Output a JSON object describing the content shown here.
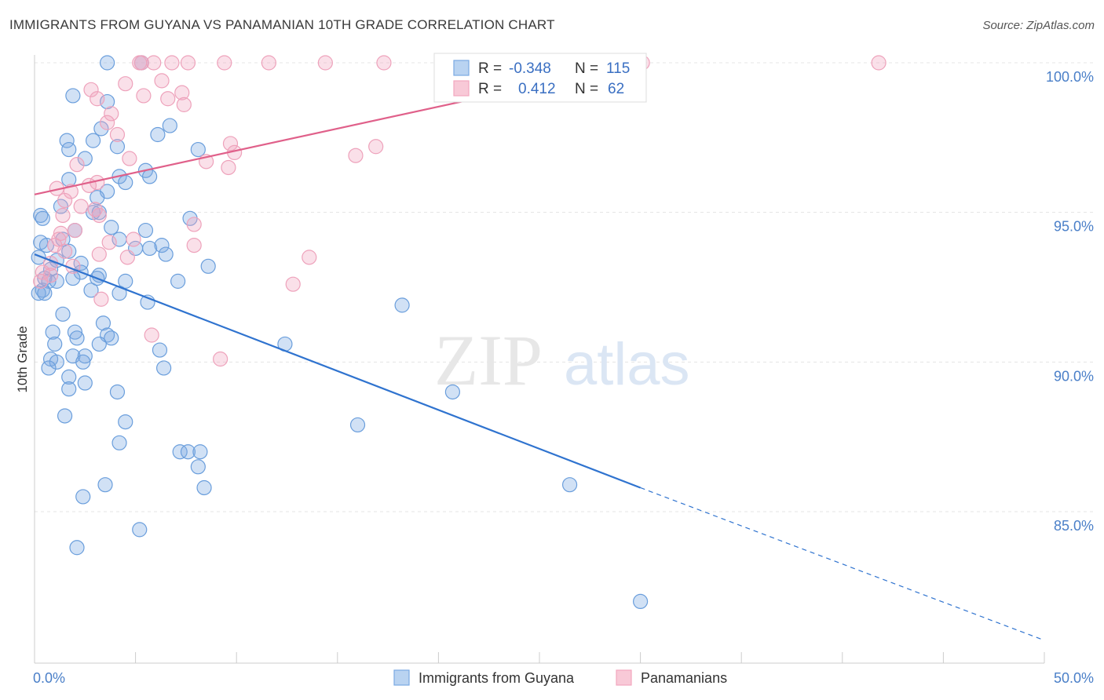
{
  "title": "IMMIGRANTS FROM GUYANA VS PANAMANIAN 10TH GRADE CORRELATION CHART",
  "source": "Source: ZipAtlas.com",
  "watermark": {
    "zip": "ZIP",
    "atlas": "atlas"
  },
  "chart_data": {
    "type": "scatter",
    "title": "IMMIGRANTS FROM GUYANA VS PANAMANIAN 10TH GRADE CORRELATION CHART",
    "xlabel": "",
    "ylabel": "10th Grade",
    "xlim": [
      0,
      50
    ],
    "ylim": [
      80.5,
      100.8
    ],
    "x_tick_labels": [
      "0.0%",
      "50.0%"
    ],
    "y_ticks": [
      85,
      90,
      95,
      100
    ],
    "y_tick_labels": [
      "85.0%",
      "90.0%",
      "95.0%",
      "100.0%"
    ],
    "grid": true,
    "legend_placement": "top-center",
    "colors": {
      "guyana": "#7aa9e3",
      "guyana_line": "#2f73cf",
      "panama": "#f2a7bf",
      "panama_line": "#e0608a",
      "tick": "#4a7fc8"
    },
    "stats": [
      {
        "r_label": "R =",
        "r": "-0.348",
        "n_label": "N =",
        "n": "115"
      },
      {
        "r_label": "R =",
        "r": "0.412",
        "n_label": "N =",
        "n": "62"
      }
    ],
    "series": [
      {
        "name": "Immigrants from Guyana",
        "trend": {
          "x": [
            0,
            30
          ],
          "y": [
            93.6,
            85.8
          ],
          "dashed_to": [
            50,
            80.7
          ]
        },
        "points": [
          [
            3.6,
            100
          ],
          [
            5.3,
            100
          ],
          [
            1.9,
            98.9
          ],
          [
            3.6,
            98.7
          ],
          [
            6.7,
            97.9
          ],
          [
            3.3,
            97.8
          ],
          [
            1.6,
            97.4
          ],
          [
            2.9,
            97.4
          ],
          [
            4.1,
            97.2
          ],
          [
            8.1,
            97.1
          ],
          [
            1.7,
            97.1
          ],
          [
            2.5,
            96.8
          ],
          [
            6.1,
            97.6
          ],
          [
            5.5,
            96.4
          ],
          [
            4.2,
            96.2
          ],
          [
            5.7,
            96.2
          ],
          [
            1.7,
            96.1
          ],
          [
            4.5,
            96.0
          ],
          [
            3.6,
            95.7
          ],
          [
            3.1,
            95.5
          ],
          [
            1.3,
            95.2
          ],
          [
            0.3,
            94.9
          ],
          [
            0.4,
            94.8
          ],
          [
            2.9,
            95.0
          ],
          [
            3.2,
            95.0
          ],
          [
            7.7,
            94.8
          ],
          [
            3.8,
            94.5
          ],
          [
            5.5,
            94.4
          ],
          [
            2.0,
            94.4
          ],
          [
            1.4,
            94.1
          ],
          [
            0.3,
            94.0
          ],
          [
            0.6,
            93.9
          ],
          [
            4.2,
            94.1
          ],
          [
            5.7,
            93.8
          ],
          [
            6.3,
            93.9
          ],
          [
            5.0,
            93.8
          ],
          [
            6.5,
            93.6
          ],
          [
            1.7,
            93.7
          ],
          [
            0.2,
            93.5
          ],
          [
            1.1,
            93.4
          ],
          [
            2.3,
            93.3
          ],
          [
            8.6,
            93.2
          ],
          [
            0.8,
            93.1
          ],
          [
            2.3,
            93.0
          ],
          [
            3.2,
            92.9
          ],
          [
            0.5,
            92.8
          ],
          [
            3.1,
            92.8
          ],
          [
            0.7,
            92.7
          ],
          [
            1.9,
            92.8
          ],
          [
            4.5,
            92.7
          ],
          [
            7.1,
            92.7
          ],
          [
            0.4,
            92.4
          ],
          [
            0.2,
            92.3
          ],
          [
            0.5,
            92.3
          ],
          [
            1.1,
            92.7
          ],
          [
            2.8,
            92.4
          ],
          [
            4.2,
            92.3
          ],
          [
            5.6,
            92.0
          ],
          [
            1.4,
            91.6
          ],
          [
            18.2,
            91.9
          ],
          [
            3.4,
            91.3
          ],
          [
            0.9,
            91.0
          ],
          [
            2.0,
            91.0
          ],
          [
            3.6,
            90.9
          ],
          [
            2.1,
            90.8
          ],
          [
            3.8,
            90.8
          ],
          [
            1.0,
            90.6
          ],
          [
            3.2,
            90.6
          ],
          [
            12.4,
            90.6
          ],
          [
            6.2,
            90.4
          ],
          [
            1.9,
            90.2
          ],
          [
            2.5,
            90.2
          ],
          [
            0.8,
            90.1
          ],
          [
            2.4,
            90.0
          ],
          [
            1.1,
            90.0
          ],
          [
            0.7,
            89.8
          ],
          [
            6.4,
            89.8
          ],
          [
            1.7,
            89.5
          ],
          [
            2.5,
            89.3
          ],
          [
            1.7,
            89.1
          ],
          [
            4.1,
            89.0
          ],
          [
            20.7,
            89.0
          ],
          [
            1.5,
            88.2
          ],
          [
            4.5,
            88.0
          ],
          [
            16.0,
            87.9
          ],
          [
            4.2,
            87.3
          ],
          [
            7.2,
            87.0
          ],
          [
            7.6,
            87.0
          ],
          [
            8.2,
            87.0
          ],
          [
            8.1,
            86.5
          ],
          [
            3.5,
            85.9
          ],
          [
            8.4,
            85.8
          ],
          [
            26.5,
            85.9
          ],
          [
            2.4,
            85.5
          ],
          [
            5.2,
            84.4
          ],
          [
            2.1,
            83.8
          ],
          [
            30,
            82.0
          ]
        ]
      },
      {
        "name": "Panamanians",
        "trend": {
          "x": [
            0,
            30
          ],
          "y": [
            95.6,
            100.0
          ]
        },
        "points": [
          [
            5.2,
            100
          ],
          [
            5.3,
            100
          ],
          [
            6.8,
            100
          ],
          [
            7.6,
            100
          ],
          [
            9.4,
            100
          ],
          [
            11.6,
            100
          ],
          [
            14.4,
            100
          ],
          [
            17.3,
            100
          ],
          [
            23.2,
            100
          ],
          [
            30.1,
            100
          ],
          [
            41.8,
            100
          ],
          [
            24.0,
            100
          ],
          [
            5.9,
            100
          ],
          [
            6.3,
            99.4
          ],
          [
            4.5,
            99.3
          ],
          [
            2.8,
            99.1
          ],
          [
            7.3,
            99.0
          ],
          [
            5.4,
            98.9
          ],
          [
            3.1,
            98.8
          ],
          [
            6.6,
            98.8
          ],
          [
            7.4,
            98.6
          ],
          [
            3.8,
            98.3
          ],
          [
            3.6,
            98.0
          ],
          [
            4.1,
            97.6
          ],
          [
            9.7,
            97.3
          ],
          [
            16.9,
            97.2
          ],
          [
            9.9,
            97.0
          ],
          [
            15.9,
            96.9
          ],
          [
            8.5,
            96.7
          ],
          [
            4.7,
            96.8
          ],
          [
            2.1,
            96.6
          ],
          [
            9.6,
            96.5
          ],
          [
            3.1,
            96.0
          ],
          [
            2.7,
            95.9
          ],
          [
            1.1,
            95.8
          ],
          [
            1.8,
            95.7
          ],
          [
            1.5,
            95.4
          ],
          [
            2.3,
            95.2
          ],
          [
            3.0,
            95.1
          ],
          [
            3.2,
            94.9
          ],
          [
            1.4,
            94.9
          ],
          [
            7.9,
            94.6
          ],
          [
            2.0,
            94.4
          ],
          [
            1.3,
            94.3
          ],
          [
            1.2,
            94.1
          ],
          [
            1.0,
            93.9
          ],
          [
            3.7,
            94.0
          ],
          [
            4.9,
            94.1
          ],
          [
            7.9,
            93.9
          ],
          [
            3.2,
            93.6
          ],
          [
            4.6,
            93.5
          ],
          [
            13.6,
            93.5
          ],
          [
            0.8,
            93.3
          ],
          [
            1.9,
            93.2
          ],
          [
            0.4,
            93.0
          ],
          [
            0.8,
            92.9
          ],
          [
            0.3,
            92.7
          ],
          [
            12.8,
            92.6
          ],
          [
            3.3,
            92.1
          ],
          [
            5.8,
            90.9
          ],
          [
            9.2,
            90.1
          ],
          [
            1.5,
            93.7
          ]
        ]
      }
    ]
  },
  "legend": {
    "items": [
      {
        "label": "Immigrants from Guyana"
      },
      {
        "label": "Panamanians"
      }
    ]
  }
}
